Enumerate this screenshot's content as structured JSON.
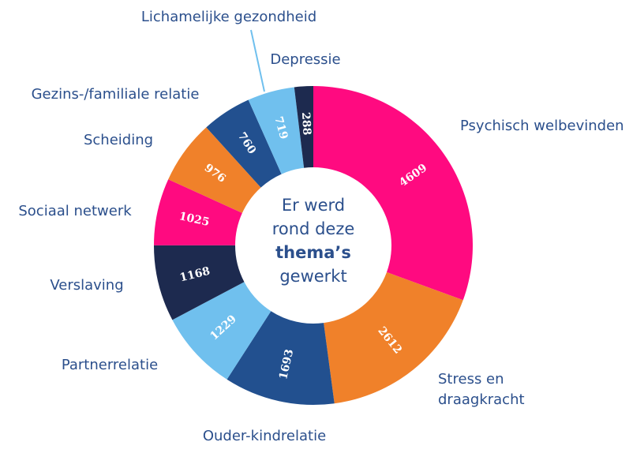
{
  "chart_data": {
    "type": "donut",
    "categories": [
      "Psychisch welbevinden",
      "Stress en draagkracht",
      "Ouder-kindrelatie",
      "Partnerrelatie",
      "Verslaving",
      "Sociaal netwerk",
      "Scheiding",
      "Gezins-/familiale relatie",
      "Lichamelijke gezondheid",
      "Depressie"
    ],
    "values": [
      4609,
      2612,
      1693,
      1229,
      1168,
      1025,
      976,
      760,
      719,
      288
    ],
    "colors": [
      "#ff0a80",
      "#f0812a",
      "#22508f",
      "#70c0ee",
      "#1d2a4f",
      "#ff0a80",
      "#f0812a",
      "#22508f",
      "#70c0ee",
      "#1d2a4f"
    ],
    "center_text": [
      "Er werd",
      "rond deze",
      "thema’s",
      "gewerkt"
    ]
  }
}
